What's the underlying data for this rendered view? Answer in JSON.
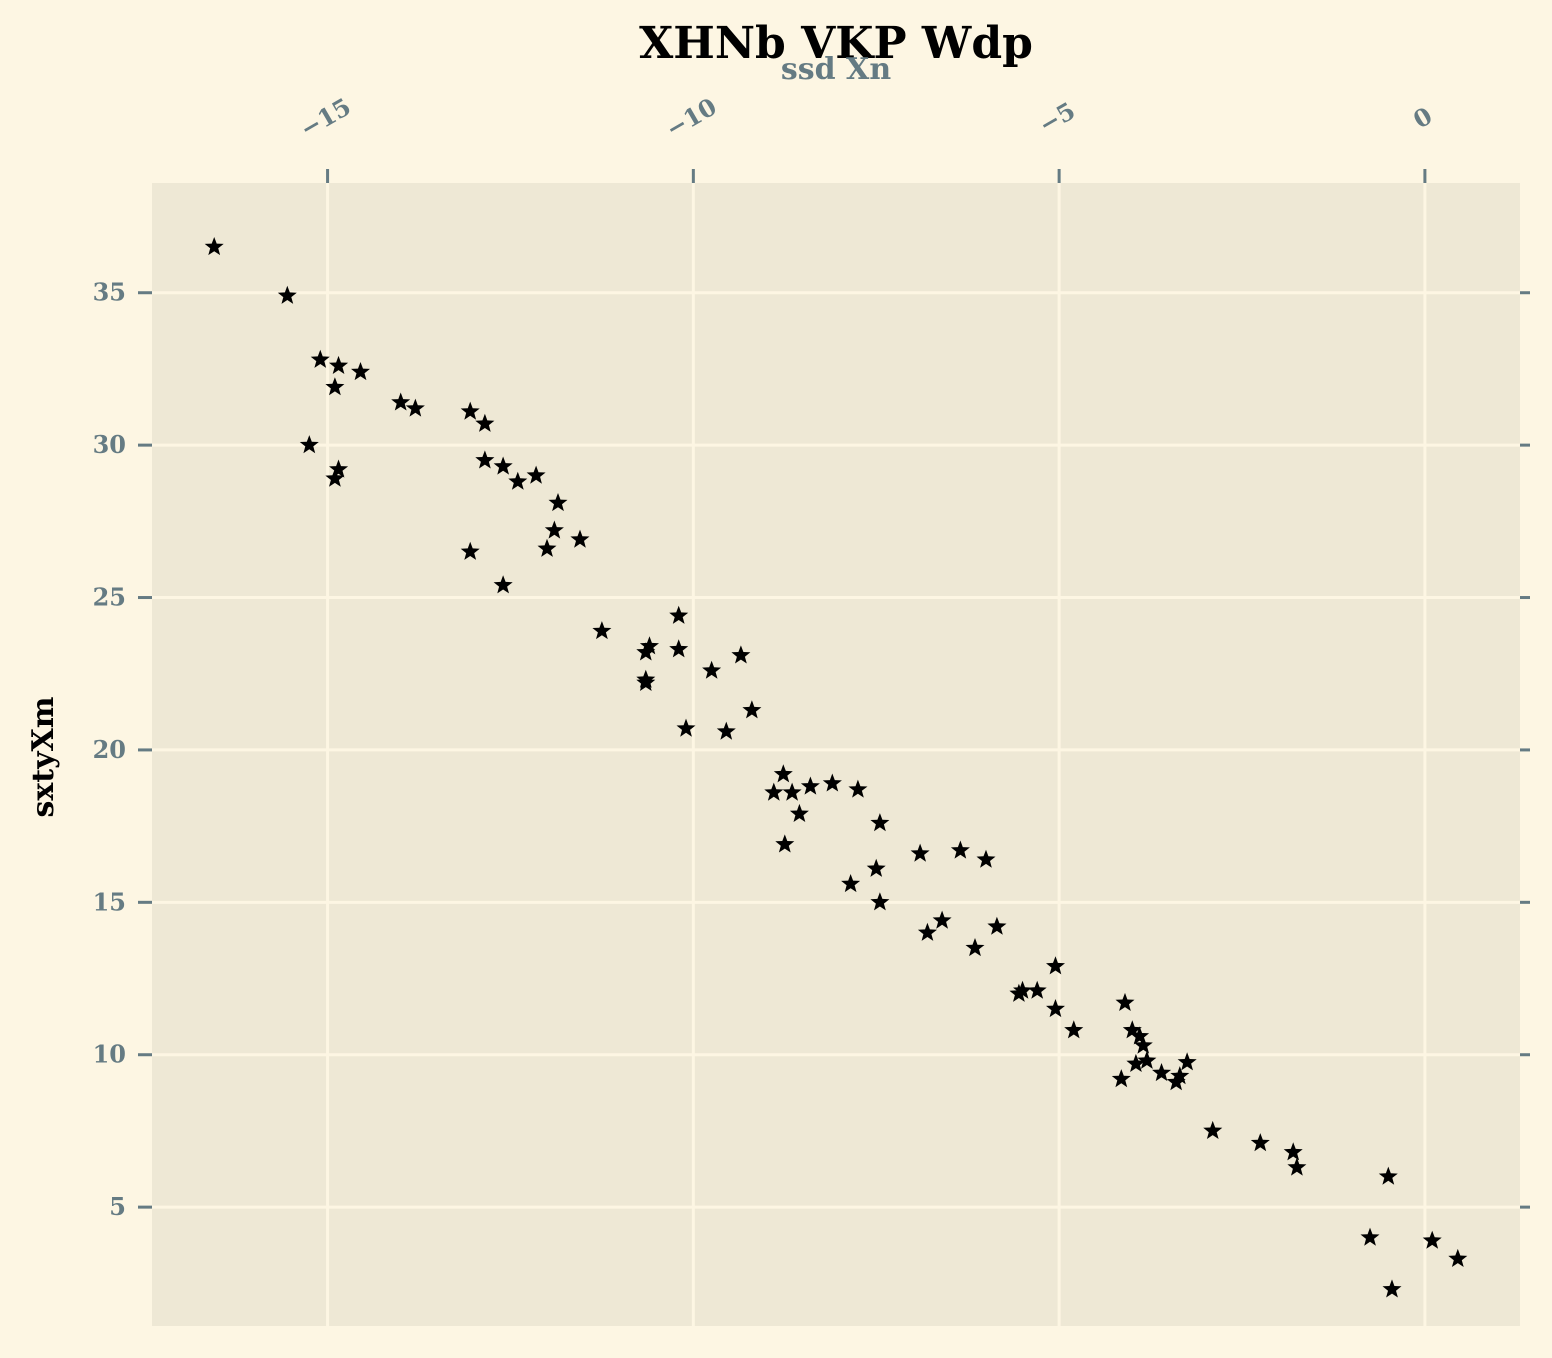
{
  "colors": {
    "page_background": "#fdf6e3",
    "plot_background": "#eee8d5",
    "grid": "#fdf6e3",
    "tick_color": "#657b83",
    "marker": "#000000"
  },
  "chart_data": {
    "type": "scatter",
    "title": "XHNb VKP Wdp",
    "xlabel": "ssd Xn",
    "ylabel": "sxtyXm",
    "x_axis_position": "top",
    "marker": "star",
    "grid": true,
    "xlim": [
      -17.4,
      1.3
    ],
    "ylim": [
      1.1,
      38.6
    ],
    "xticks": [
      -15,
      -10,
      -5,
      0
    ],
    "xtick_labels": [
      "−15",
      "−10",
      "−5",
      "0"
    ],
    "yticks": [
      5,
      10,
      15,
      20,
      25,
      30,
      35
    ],
    "ytick_labels": [
      "5",
      "10",
      "15",
      "20",
      "25",
      "30",
      "35"
    ],
    "x": [
      -16.55,
      -15.55,
      -15.1,
      -14.85,
      -14.9,
      -14.55,
      -14.0,
      -13.8,
      -13.05,
      -12.85,
      -15.25,
      -14.85,
      -14.9,
      -12.85,
      -12.6,
      -12.4,
      -12.15,
      -11.85,
      -11.9,
      -12.0,
      -11.55,
      -13.05,
      -12.6,
      -11.25,
      -10.6,
      -10.65,
      -10.65,
      -10.65,
      -10.2,
      -10.2,
      -9.75,
      -9.35,
      -10.1,
      -9.55,
      -9.2,
      -8.9,
      -8.77,
      -8.65,
      -8.55,
      -8.4,
      -8.1,
      -7.75,
      -8.75,
      -7.45,
      -7.85,
      -7.5,
      -7.45,
      -6.9,
      -6.35,
      -6.0,
      -6.8,
      -6.6,
      -6.15,
      -5.85,
      -5.55,
      -5.5,
      -5.3,
      -5.05,
      -4.8,
      -5.05,
      -4.1,
      -4.0,
      -3.95,
      -3.8,
      -3.6,
      -3.4,
      -3.35,
      -2.9,
      -4.15,
      -3.9,
      -3.85,
      -3.25,
      -2.25,
      -1.8,
      -1.75,
      -0.5,
      -0.75,
      0.1,
      0.45,
      -0.45
    ],
    "y": [
      36.5,
      34.9,
      32.8,
      32.6,
      31.9,
      32.4,
      31.4,
      31.2,
      31.1,
      30.7,
      30.0,
      29.2,
      28.9,
      29.5,
      29.3,
      28.8,
      29.0,
      28.1,
      27.2,
      26.6,
      26.9,
      26.5,
      25.4,
      23.9,
      23.4,
      23.2,
      22.3,
      22.2,
      24.4,
      23.3,
      22.6,
      23.1,
      20.7,
      20.6,
      21.3,
      18.6,
      19.2,
      18.6,
      17.9,
      18.8,
      18.9,
      18.7,
      16.9,
      17.6,
      15.6,
      16.1,
      15.0,
      16.6,
      16.7,
      16.4,
      14.0,
      14.4,
      13.5,
      14.2,
      12.0,
      12.1,
      12.1,
      12.9,
      10.8,
      11.5,
      11.7,
      10.8,
      9.7,
      9.8,
      9.4,
      9.1,
      9.3,
      7.5,
      9.2,
      10.6,
      10.3,
      9.75,
      7.1,
      6.8,
      6.3,
      6.0,
      4.0,
      3.9,
      3.3,
      2.3
    ]
  }
}
